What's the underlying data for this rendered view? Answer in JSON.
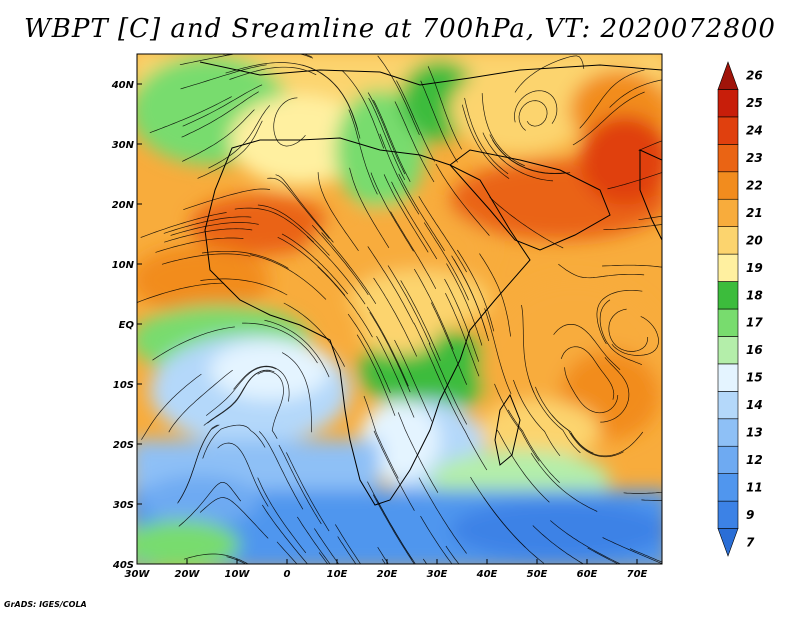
{
  "title": "WBPT [C] and Sreamline at 700hPa, VT: 2020072800",
  "credit": "GrADS: IGES/COLA",
  "map": {
    "lon_range": [
      -30,
      75
    ],
    "lat_range": [
      -40,
      45
    ],
    "lon_ticks": [
      {
        "value": -30,
        "label": "30W"
      },
      {
        "value": -20,
        "label": "20W"
      },
      {
        "value": -10,
        "label": "10W"
      },
      {
        "value": 0,
        "label": "0"
      },
      {
        "value": 10,
        "label": "10E"
      },
      {
        "value": 20,
        "label": "20E"
      },
      {
        "value": 30,
        "label": "30E"
      },
      {
        "value": 40,
        "label": "40E"
      },
      {
        "value": 50,
        "label": "50E"
      },
      {
        "value": 60,
        "label": "60E"
      },
      {
        "value": 70,
        "label": "70E"
      }
    ],
    "lat_ticks": [
      {
        "value": 40,
        "label": "40N"
      },
      {
        "value": 30,
        "label": "30N"
      },
      {
        "value": 20,
        "label": "20N"
      },
      {
        "value": 10,
        "label": "10N"
      },
      {
        "value": 0,
        "label": "EQ"
      },
      {
        "value": -10,
        "label": "10S"
      },
      {
        "value": -20,
        "label": "20S"
      },
      {
        "value": -30,
        "label": "30S"
      },
      {
        "value": -40,
        "label": "40S"
      }
    ]
  },
  "colorbar": {
    "levels": [
      "7",
      "9",
      "11",
      "12",
      "13",
      "14",
      "15",
      "16",
      "17",
      "18",
      "19",
      "20",
      "21",
      "22",
      "23",
      "24",
      "25",
      "26"
    ],
    "colors": [
      "#2a6ed6",
      "#3c82e6",
      "#5096ee",
      "#6eaaf2",
      "#8ec0f6",
      "#b4d8fa",
      "#e4f4ff",
      "#b4eeaa",
      "#78dc6e",
      "#3cbc3c",
      "#fff0a0",
      "#fcd46e",
      "#f8ac3c",
      "#f28c1e",
      "#ea6414",
      "#e0400e",
      "#c81e0a",
      "#a0140a"
    ]
  }
}
